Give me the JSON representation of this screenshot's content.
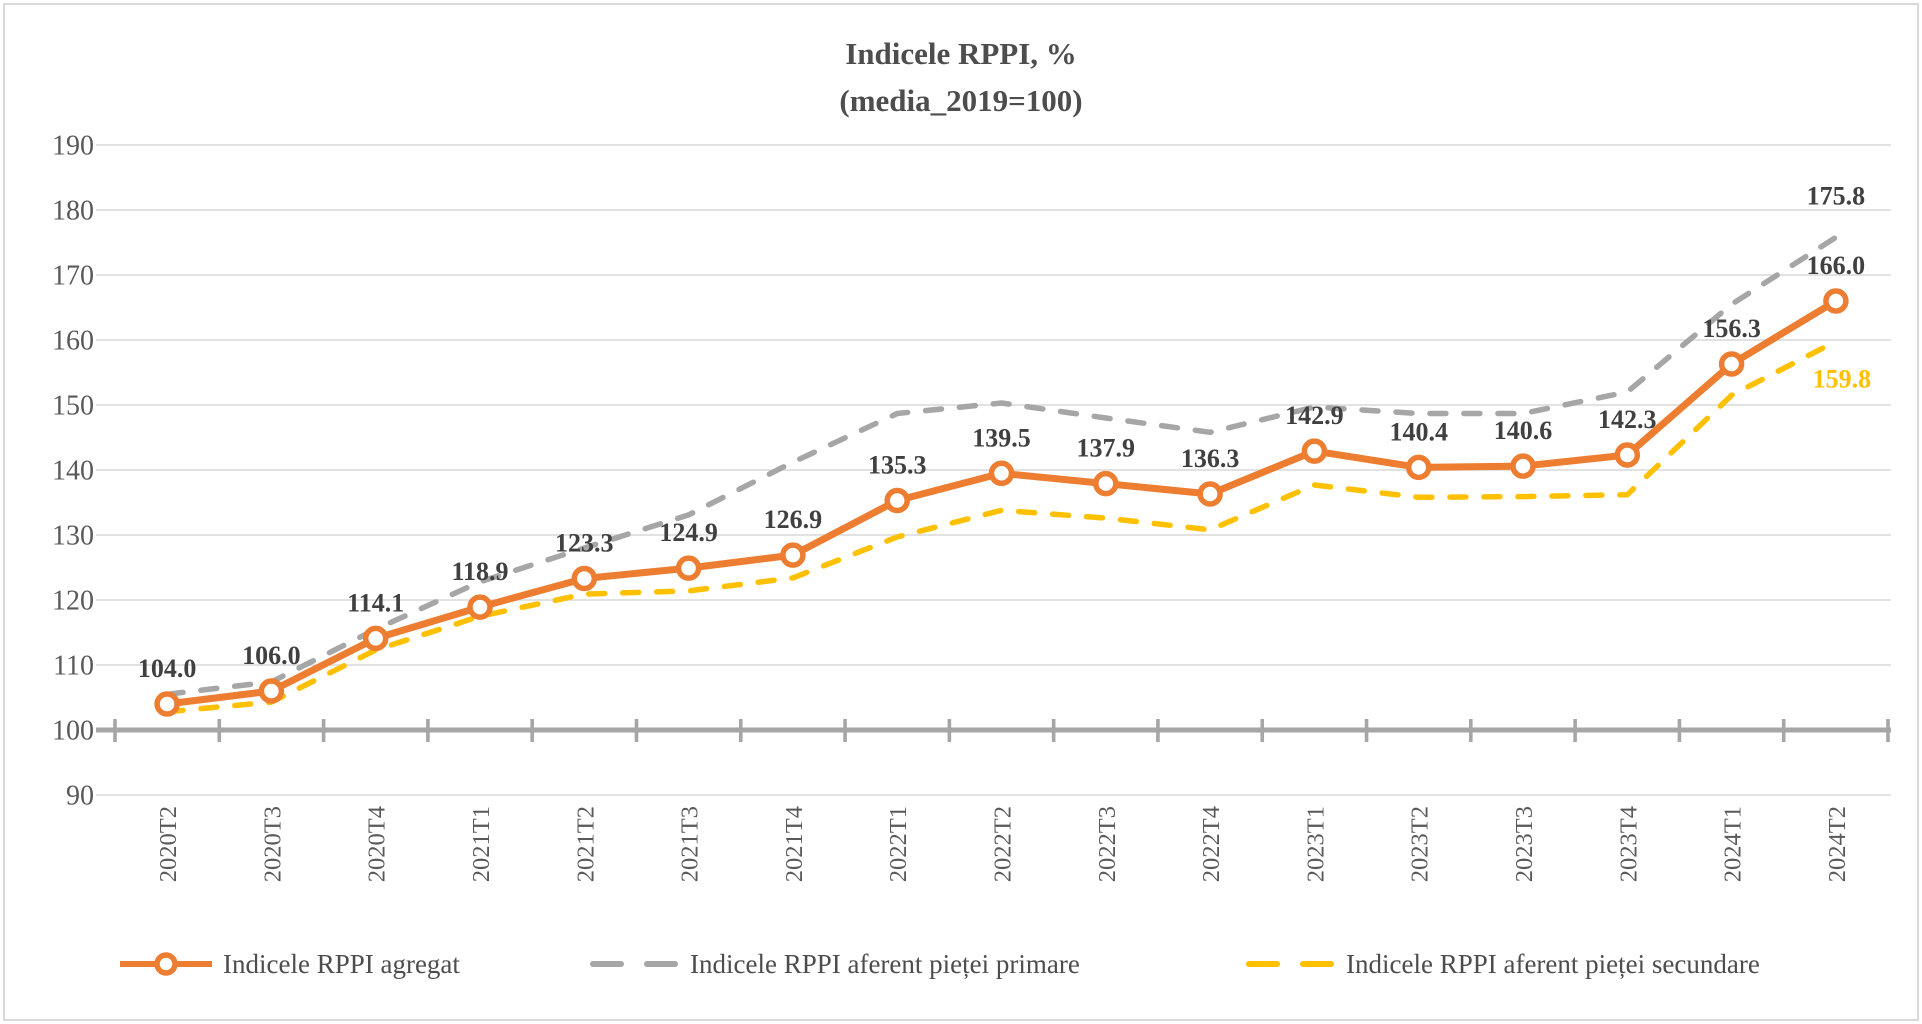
{
  "title": {
    "line1": "Indicele RPPI, %",
    "line2": "(media_2019=100)"
  },
  "colors": {
    "gridline": "#d9d9d9",
    "axis": "#a6a6a6",
    "tick_label": "#595959",
    "title": "#4d4d4d",
    "border": "#d9d9d9",
    "background": "#ffffff"
  },
  "chart_data": {
    "type": "line",
    "title": "Indicele RPPI, %",
    "subtitle": "(media_2019=100)",
    "categories": [
      "2020T2",
      "2020T3",
      "2020T4",
      "2021T1",
      "2021T2",
      "2021T3",
      "2021T4",
      "2022T1",
      "2022T2",
      "2022T3",
      "2022T4",
      "2023T1",
      "2023T2",
      "2023T3",
      "2023T4",
      "2024T1",
      "2024T2"
    ],
    "y_axis": {
      "min": 90,
      "max": 190,
      "step": 10,
      "crosses_at": 100,
      "gridlines": true
    },
    "x_axis": {
      "label_rotation": -90,
      "tick_marks": "cross"
    },
    "legend_position": "bottom",
    "series": [
      {
        "name": "Indicele RPPI agregat",
        "color": "#ED7D31",
        "style": "solid",
        "marker": "circle",
        "data_labels": "all",
        "label_color": "#404040",
        "values": [
          104.0,
          106.0,
          114.1,
          118.9,
          123.3,
          124.9,
          126.9,
          135.3,
          139.5,
          137.9,
          136.3,
          142.9,
          140.4,
          140.6,
          142.3,
          156.3,
          166.0
        ]
      },
      {
        "name": "Indicele RPPI aferent pieței primare",
        "color": "#A6A6A6",
        "style": "dashed",
        "marker": "none",
        "data_labels": "last",
        "last_label": "175.8",
        "label_color": "#404040",
        "values": [
          105.5,
          107.4,
          115.5,
          122.8,
          128.0,
          133.1,
          141.2,
          148.7,
          150.3,
          148.0,
          145.8,
          149.7,
          148.7,
          148.7,
          152.0,
          165.5,
          175.8
        ]
      },
      {
        "name": "Indicele RPPI aferent pieței secundare",
        "color": "#FFC000",
        "style": "dashed",
        "marker": "none",
        "data_labels": "last",
        "last_label": "159.8",
        "label_color": "#FFC000",
        "values": [
          102.8,
          104.3,
          112.3,
          117.5,
          120.9,
          121.4,
          123.4,
          129.7,
          133.8,
          132.6,
          130.8,
          137.7,
          135.8,
          135.9,
          136.2,
          151.5,
          159.8
        ]
      }
    ]
  }
}
